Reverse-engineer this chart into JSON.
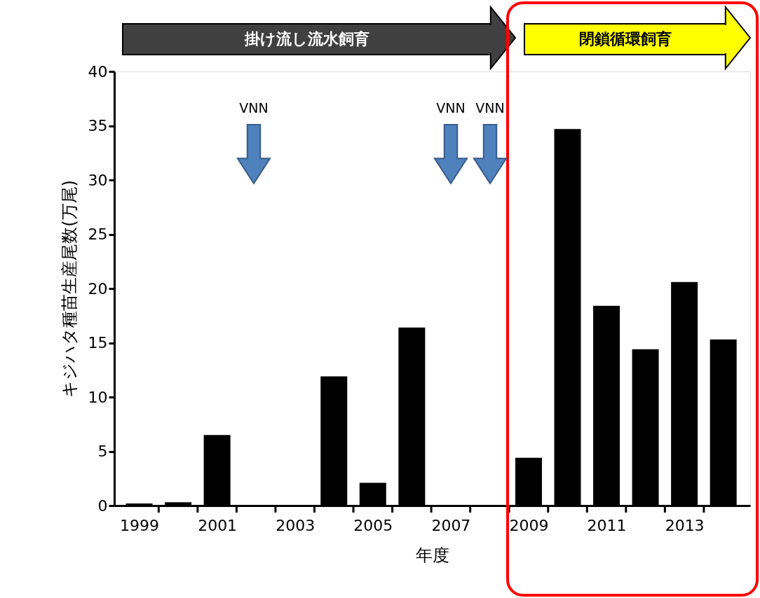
{
  "chart_data": {
    "type": "bar",
    "xlabel": "年度",
    "ylabel": "キジハタ種苗生産尾数(万尾)",
    "x": [
      1999,
      2000,
      2001,
      2002,
      2003,
      2004,
      2005,
      2006,
      2007,
      2008,
      2009,
      2010,
      2011,
      2012,
      2013,
      2014
    ],
    "values": [
      0.2,
      0.3,
      6.5,
      0,
      0,
      11.9,
      2.1,
      16.4,
      0,
      0,
      4.4,
      34.7,
      18.4,
      14.4,
      20.6,
      15.3
    ],
    "color": "#000000",
    "xlim": [
      1998.45,
      2014.6
    ],
    "xticks": [
      1999,
      2001,
      2003,
      2005,
      2007,
      2009,
      2011,
      2013,
      {
        "value": 1999.5,
        "label": null
      },
      {
        "value": 2000.5,
        "label": null
      },
      {
        "value": 2001.5,
        "label": null
      },
      {
        "value": 2002.5,
        "label": null
      },
      {
        "value": 2003.5,
        "label": null
      },
      {
        "value": 2004.5,
        "label": null
      },
      {
        "value": 2005.5,
        "label": null
      },
      {
        "value": 2006.5,
        "label": null
      },
      {
        "value": 2007.5,
        "label": null
      },
      {
        "value": 2008.5,
        "label": null
      },
      {
        "value": 2009.5,
        "label": null
      },
      {
        "value": 2010.5,
        "label": null
      },
      {
        "value": 2011.5,
        "label": null
      },
      {
        "value": 2012.5,
        "label": null
      },
      {
        "value": 2013.5,
        "label": null
      }
    ],
    "ylim": [
      0,
      40
    ],
    "yticks": [
      0,
      5,
      10,
      15,
      20,
      25,
      30,
      35,
      40
    ],
    "grid": false,
    "annotations": [
      "掛け流し流水飼育",
      "閉鎖循環飼育",
      "VNN",
      "VNN",
      "VNN"
    ]
  }
}
